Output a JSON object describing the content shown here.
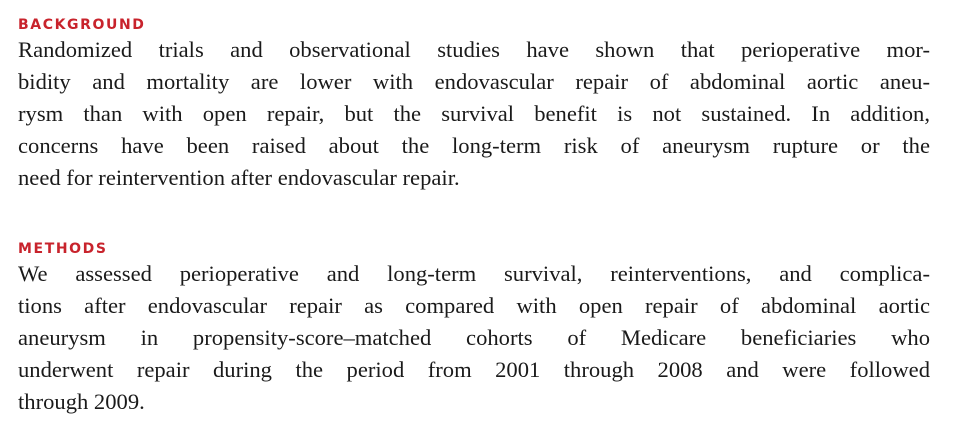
{
  "background": {
    "heading": "BACKGROUND",
    "lines": [
      "Randomized trials and observational studies have shown that perioperative mor-",
      "bidity and mortality are lower with endovascular repair of abdominal aortic aneu-",
      "rysm than with open repair, but the survival benefit is not sustained. In addition,",
      "concerns have been raised about the long-term risk of aneurysm rupture or the",
      "need for reintervention after endovascular repair."
    ]
  },
  "methods": {
    "heading": "METHODS",
    "lines": [
      "We assessed perioperative and long-term survival, reinterventions, and complica-",
      "tions after endovascular repair as compared with open repair of abdominal aortic",
      "aneurysm in propensity-score–matched cohorts of Medicare beneficiaries who",
      "underwent repair during the period from 2001 through 2008 and were followed",
      "through 2009."
    ]
  }
}
